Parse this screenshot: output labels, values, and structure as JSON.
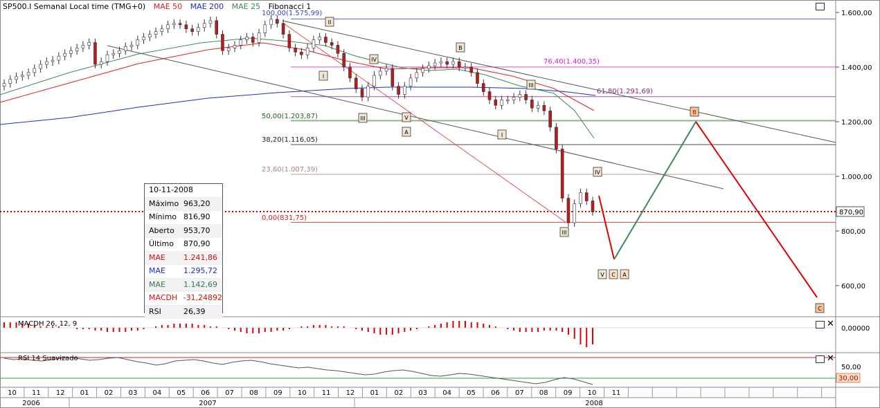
{
  "header": {
    "symbol": "SP500.I Semanal Local time (TMG+0)",
    "mae50": "MAE 50",
    "mae200": "MAE 200",
    "mae25": "MAE 25",
    "fib": "Fibonacci 1"
  },
  "colors": {
    "mae50": "#e02020",
    "mae200": "#1a2bd0",
    "mae25": "#3a8a5a",
    "fib": "#333333",
    "up": "#ffffff",
    "down": "#b81c1c",
    "macd": "#e00000"
  },
  "chart_data": {
    "type": "candlestick",
    "price_axis_ticks": [
      "1.600,00",
      "1.400,00",
      "1.200,00",
      "1.000,00",
      "800,00",
      "600,00"
    ],
    "price_ylim": [
      540,
      1640
    ],
    "current_price_label": "870,90",
    "current_price": 870.9,
    "time_axis_months": [
      "10",
      "11",
      "12",
      "01",
      "02",
      "03",
      "04",
      "05",
      "06",
      "07",
      "08",
      "09",
      "10",
      "11",
      "12",
      "01",
      "02",
      "03",
      "04",
      "05",
      "06",
      "07",
      "08",
      "09",
      "10",
      "11"
    ],
    "time_axis_years": [
      "2006",
      "2007",
      "2008"
    ],
    "fibonacci_levels": [
      {
        "label": "100,00(1.575,99)",
        "value": 1575.99,
        "color": "#3344cc"
      },
      {
        "label": "76,40(1.400,35)",
        "value": 1400.35,
        "color": "#cc22cc"
      },
      {
        "label": "61,80(1.291,69)",
        "value": 1291.69,
        "color": "#882288"
      },
      {
        "label": "50,00(1.203,87)",
        "value": 1203.87,
        "color": "#226622"
      },
      {
        "label": "38,20(1.116,05)",
        "value": 1116.05,
        "color": "#222222"
      },
      {
        "label": "23,60(1.007,39)",
        "value": 1007.39,
        "color": "#b08080"
      },
      {
        "label": "0,00(831,75)",
        "value": 831.75,
        "color": "#cc2222"
      }
    ],
    "wave_labels": [
      "II",
      "I",
      "III",
      "IV",
      "V",
      "A",
      "B",
      "III",
      "I",
      "IV",
      "III",
      "V",
      "C",
      "A",
      "B",
      "C"
    ],
    "macd": {
      "title": "MACDH 26, 12, 9",
      "tick": "0,00000"
    },
    "rsi": {
      "title": "RSI 14 Suavizado",
      "ticks": [
        "50,00"
      ],
      "level_label": "30,00"
    }
  },
  "infobox": {
    "date": "10-11-2008",
    "rows": [
      {
        "k": "Máximo",
        "v": "963,20",
        "color": "#000"
      },
      {
        "k": "Mínimo",
        "v": "816,90",
        "color": "#000"
      },
      {
        "k": "Aberto",
        "v": "953,70",
        "color": "#000"
      },
      {
        "k": "Último",
        "v": "870,90",
        "color": "#000"
      },
      {
        "k": "MAE",
        "v": "1.241,86",
        "color": "#d01010"
      },
      {
        "k": "MAE",
        "v": "1.295,72",
        "color": "#1a2bd0"
      },
      {
        "k": "MAE",
        "v": "1.142,69",
        "color": "#2f7a4f"
      },
      {
        "k": "MACDH",
        "v": "-31,24892",
        "color": "#d01010"
      },
      {
        "k": "RSI",
        "v": "26,39",
        "color": "#000"
      }
    ]
  }
}
